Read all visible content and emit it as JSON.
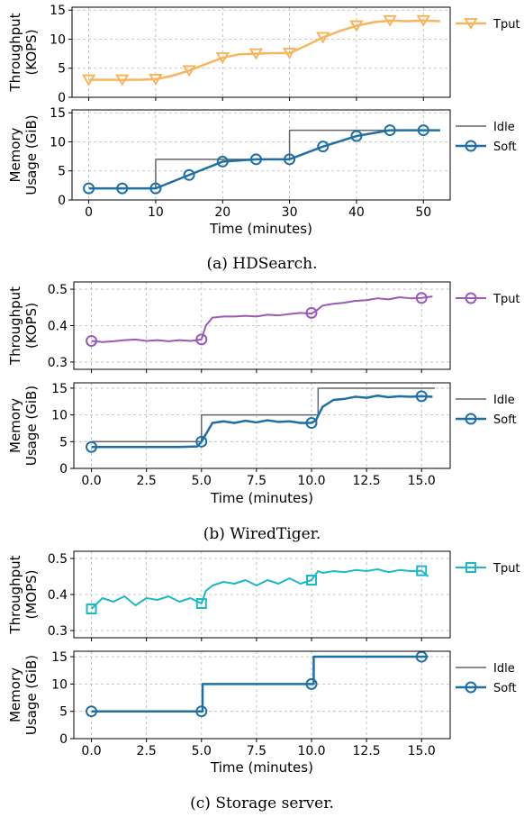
{
  "chart_data": [
    {
      "panel": "a",
      "caption": "(a) HDSearch.",
      "xlabel": "Time (minutes)",
      "xlim": [
        -2.5,
        54
      ],
      "xticks": [
        0,
        10,
        20,
        30,
        40,
        50
      ],
      "subplots": [
        {
          "type": "line",
          "ylabel": [
            "Throughput",
            "(KOPS)"
          ],
          "ylim": [
            0,
            15.5
          ],
          "yticks": [
            0,
            5,
            10,
            15
          ],
          "grid": true,
          "legend_position": "outside-right",
          "series": [
            {
              "name": "Tput",
              "color": "#f7b55f",
              "width": 2.5,
              "marker": "triangle-down",
              "x": [
                0,
                2.5,
                5,
                7.5,
                10,
                12.5,
                15,
                17.5,
                20,
                22.5,
                25,
                27.5,
                30,
                32.5,
                35,
                37.5,
                40,
                42.5,
                45,
                47.5,
                50,
                52.5
              ],
              "y": [
                3.0,
                3.0,
                3.0,
                3.0,
                3.1,
                3.7,
                4.6,
                5.7,
                6.8,
                7.4,
                7.5,
                7.6,
                7.6,
                8.9,
                10.3,
                11.4,
                12.3,
                12.9,
                13.2,
                13.1,
                13.2,
                13.1
              ],
              "marker_x": [
                0,
                5,
                10,
                15,
                20,
                25,
                30,
                35,
                40,
                45,
                50
              ],
              "marker_y": [
                3.0,
                3.0,
                3.1,
                4.6,
                6.8,
                7.5,
                7.6,
                10.3,
                12.3,
                13.2,
                13.2
              ]
            }
          ]
        },
        {
          "type": "line",
          "ylabel": [
            "Memory",
            "Usage (GiB)"
          ],
          "ylim": [
            0,
            15.5
          ],
          "yticks": [
            0,
            5,
            10,
            15
          ],
          "grid": true,
          "legend_position": "outside-right",
          "series": [
            {
              "name": "Idle",
              "color": "#666666",
              "width": 1.5,
              "marker": "none",
              "x": [
                0,
                10,
                10,
                30,
                30,
                52.5
              ],
              "y": [
                2,
                2,
                7,
                7,
                12,
                12
              ]
            },
            {
              "name": "Soft",
              "color": "#1f6fa3",
              "width": 2.5,
              "marker": "circle",
              "x": [
                0,
                5,
                10,
                15,
                20,
                25,
                30,
                35,
                40,
                45,
                50,
                52.5
              ],
              "y": [
                2,
                2,
                2,
                4.3,
                6.6,
                7,
                7,
                9.2,
                11,
                12,
                12,
                12
              ],
              "marker_x": [
                0,
                5,
                10,
                15,
                20,
                25,
                30,
                35,
                40,
                45,
                50
              ],
              "marker_y": [
                2,
                2,
                2,
                4.3,
                6.6,
                7,
                7,
                9.2,
                11,
                12,
                12
              ]
            }
          ]
        }
      ]
    },
    {
      "panel": "b",
      "caption": "(b) WiredTiger.",
      "xlabel": "Time (minutes)",
      "xlim": [
        -0.8,
        16.3
      ],
      "xticks": [
        "0.0",
        "2.5",
        "5.0",
        "7.5",
        "10.0",
        "12.5",
        "15.0"
      ],
      "subplots": [
        {
          "type": "line",
          "ylabel": [
            "Throughput",
            "(KOPS)"
          ],
          "ylim": [
            0.28,
            0.52
          ],
          "yticks": [
            "0.3",
            "0.4",
            "0.5"
          ],
          "grid": true,
          "legend_position": "outside-right",
          "series": [
            {
              "name": "Tput",
              "color": "#9b59b6",
              "width": 2,
              "marker": "circle",
              "x": [
                0,
                0.5,
                1,
                1.5,
                2,
                2.5,
                3,
                3.5,
                4,
                4.5,
                5,
                5.2,
                5.5,
                6,
                6.5,
                7,
                7.5,
                8,
                8.5,
                9,
                9.5,
                10,
                10.2,
                10.5,
                11,
                11.5,
                12,
                12.5,
                13,
                13.5,
                14,
                14.5,
                15,
                15.5
              ],
              "y": [
                0.358,
                0.355,
                0.357,
                0.36,
                0.362,
                0.358,
                0.36,
                0.357,
                0.36,
                0.358,
                0.362,
                0.4,
                0.422,
                0.425,
                0.425,
                0.427,
                0.425,
                0.43,
                0.428,
                0.432,
                0.435,
                0.433,
                0.44,
                0.455,
                0.46,
                0.463,
                0.468,
                0.47,
                0.475,
                0.472,
                0.478,
                0.475,
                0.476,
                0.48
              ],
              "marker_x": [
                0,
                5,
                10,
                15
              ],
              "marker_y": [
                0.358,
                0.362,
                0.435,
                0.476
              ]
            }
          ]
        },
        {
          "type": "line",
          "ylabel": [
            "Memory",
            "Usage (GiB)"
          ],
          "ylim": [
            0,
            16
          ],
          "yticks": [
            0,
            5,
            10,
            15
          ],
          "grid": true,
          "legend_position": "outside-right",
          "series": [
            {
              "name": "Idle",
              "color": "#666666",
              "width": 1.5,
              "marker": "none",
              "x": [
                0,
                5,
                5,
                10.3,
                10.3,
                15.6
              ],
              "y": [
                5,
                5,
                10,
                10,
                15,
                15
              ]
            },
            {
              "name": "Soft",
              "color": "#1f6fa3",
              "width": 2.5,
              "marker": "circle",
              "x": [
                0,
                1,
                2,
                3,
                4,
                4.8,
                5,
                5.5,
                6,
                6.5,
                7,
                7.5,
                8,
                8.5,
                9,
                9.5,
                10,
                10.2,
                10.5,
                11,
                11.5,
                12,
                12.5,
                13,
                13.5,
                14,
                14.5,
                15,
                15.5
              ],
              "y": [
                4,
                4,
                4,
                4,
                4,
                4.1,
                5,
                8.5,
                8.8,
                8.5,
                8.9,
                8.6,
                9,
                8.7,
                8.8,
                8.5,
                8.5,
                9,
                11.5,
                12.8,
                13,
                13.4,
                13.2,
                13.6,
                13.3,
                13.5,
                13.4,
                13.5,
                13.4
              ],
              "marker_x": [
                0,
                5,
                10,
                15
              ],
              "marker_y": [
                4,
                5,
                8.5,
                13.5
              ]
            }
          ]
        }
      ]
    },
    {
      "panel": "c",
      "caption": "(c) Storage server.",
      "xlabel": "Time (minutes)",
      "xlim": [
        -0.8,
        16.3
      ],
      "xticks": [
        "0.0",
        "2.5",
        "5.0",
        "7.5",
        "10.0",
        "12.5",
        "15.0"
      ],
      "subplots": [
        {
          "type": "line",
          "ylabel": [
            "Throughput",
            "(MOPS)"
          ],
          "ylim": [
            0.28,
            0.52
          ],
          "yticks": [
            "0.3",
            "0.4",
            "0.5"
          ],
          "grid": true,
          "legend_position": "outside-right",
          "series": [
            {
              "name": "Tput",
              "color": "#1cb8c4",
              "width": 2,
              "marker": "square",
              "x": [
                0,
                0.5,
                1,
                1.5,
                2,
                2.5,
                3,
                3.5,
                4,
                4.5,
                5,
                5.2,
                5.5,
                6,
                6.5,
                7,
                7.5,
                8,
                8.5,
                9,
                9.5,
                10,
                10.3,
                10.5,
                11,
                11.5,
                12,
                12.5,
                13,
                13.5,
                14,
                14.5,
                15,
                15.3
              ],
              "y": [
                0.36,
                0.39,
                0.38,
                0.395,
                0.37,
                0.39,
                0.385,
                0.395,
                0.38,
                0.39,
                0.375,
                0.41,
                0.425,
                0.435,
                0.43,
                0.44,
                0.425,
                0.44,
                0.43,
                0.445,
                0.43,
                0.44,
                0.465,
                0.46,
                0.465,
                0.462,
                0.468,
                0.465,
                0.47,
                0.462,
                0.468,
                0.465,
                0.466,
                0.45
              ],
              "marker_x": [
                0,
                5,
                10,
                15
              ],
              "marker_y": [
                0.36,
                0.375,
                0.44,
                0.466
              ]
            }
          ]
        },
        {
          "type": "line",
          "ylabel": [
            "Memory",
            "Usage (GiB)"
          ],
          "ylim": [
            0,
            16
          ],
          "yticks": [
            0,
            5,
            10,
            15
          ],
          "grid": true,
          "legend_position": "outside-right",
          "series": [
            {
              "name": "Idle",
              "color": "#666666",
              "width": 1.5,
              "marker": "none",
              "x": [
                0,
                5.05,
                5.05,
                10.1,
                10.1,
                15.3
              ],
              "y": [
                5,
                5,
                10,
                10,
                15,
                15
              ]
            },
            {
              "name": "Soft",
              "color": "#1f6fa3",
              "width": 2.5,
              "marker": "circle",
              "x": [
                0,
                5.05,
                5.05,
                10.1,
                10.1,
                15.3
              ],
              "y": [
                5,
                5,
                10,
                10,
                15,
                15
              ],
              "marker_x": [
                0,
                5,
                10,
                15
              ],
              "marker_y": [
                5,
                5,
                10,
                15
              ]
            }
          ]
        }
      ]
    }
  ]
}
